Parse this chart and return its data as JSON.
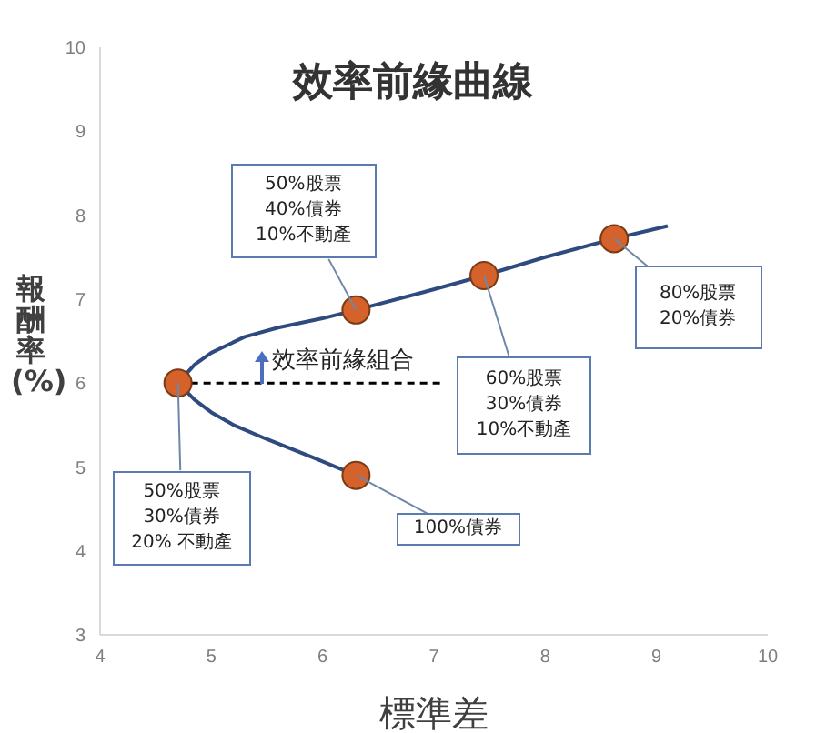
{
  "chart_data": {
    "type": "line",
    "title": "效率前緣曲線",
    "xlabel": "標準差",
    "ylabel": "報酬率(%)",
    "xlim": [
      4,
      10
    ],
    "xticks": [
      4,
      5,
      6,
      7,
      8,
      9,
      10
    ],
    "ylim": [
      3,
      10
    ],
    "yticks": [
      3,
      4,
      5,
      6,
      7,
      8,
      9,
      10
    ],
    "series": [
      {
        "color": "#2f4a7f",
        "marker": "none",
        "line_style": "solid",
        "x": [
          6.3,
          5.9,
          5.5,
          5.2,
          5.0,
          4.85,
          4.7,
          4.85,
          5.0,
          5.3,
          5.6,
          6.0,
          6.3,
          6.9,
          7.45,
          8.0,
          8.62,
          9.1
        ],
        "values": [
          4.9,
          5.12,
          5.33,
          5.5,
          5.65,
          5.8,
          6.0,
          6.22,
          6.36,
          6.55,
          6.66,
          6.77,
          6.87,
          7.08,
          7.28,
          7.5,
          7.72,
          7.87
        ]
      },
      {
        "color": "#000000",
        "marker": "none",
        "line_style": "dashed",
        "x": [
          4.7,
          7.1
        ],
        "values": [
          6,
          6
        ]
      },
      {
        "type": "scatter",
        "color": "#d4622a",
        "marker": "circle",
        "x": [
          4.7,
          6.3,
          7.45,
          8.62,
          6.3
        ],
        "values": [
          6.0,
          6.87,
          7.28,
          7.72,
          4.9
        ]
      }
    ],
    "annotations": [
      {
        "text": "50%股票\n30%債券\n20% 不動產",
        "x": 4.7,
        "y": 6.0
      },
      {
        "text": "50%股票\n40%債券\n10%不動產",
        "x": 6.3,
        "y": 6.87
      },
      {
        "text": "60%股票\n30%債券\n10%不動產",
        "x": 7.45,
        "y": 7.28
      },
      {
        "text": "80%股票\n20%債券",
        "x": 8.62,
        "y": 7.72
      },
      {
        "text": "100%債券",
        "x": 6.3,
        "y": 4.9
      },
      {
        "text": "效率前緣組合",
        "x": 5.45,
        "y": 6.0
      }
    ]
  }
}
